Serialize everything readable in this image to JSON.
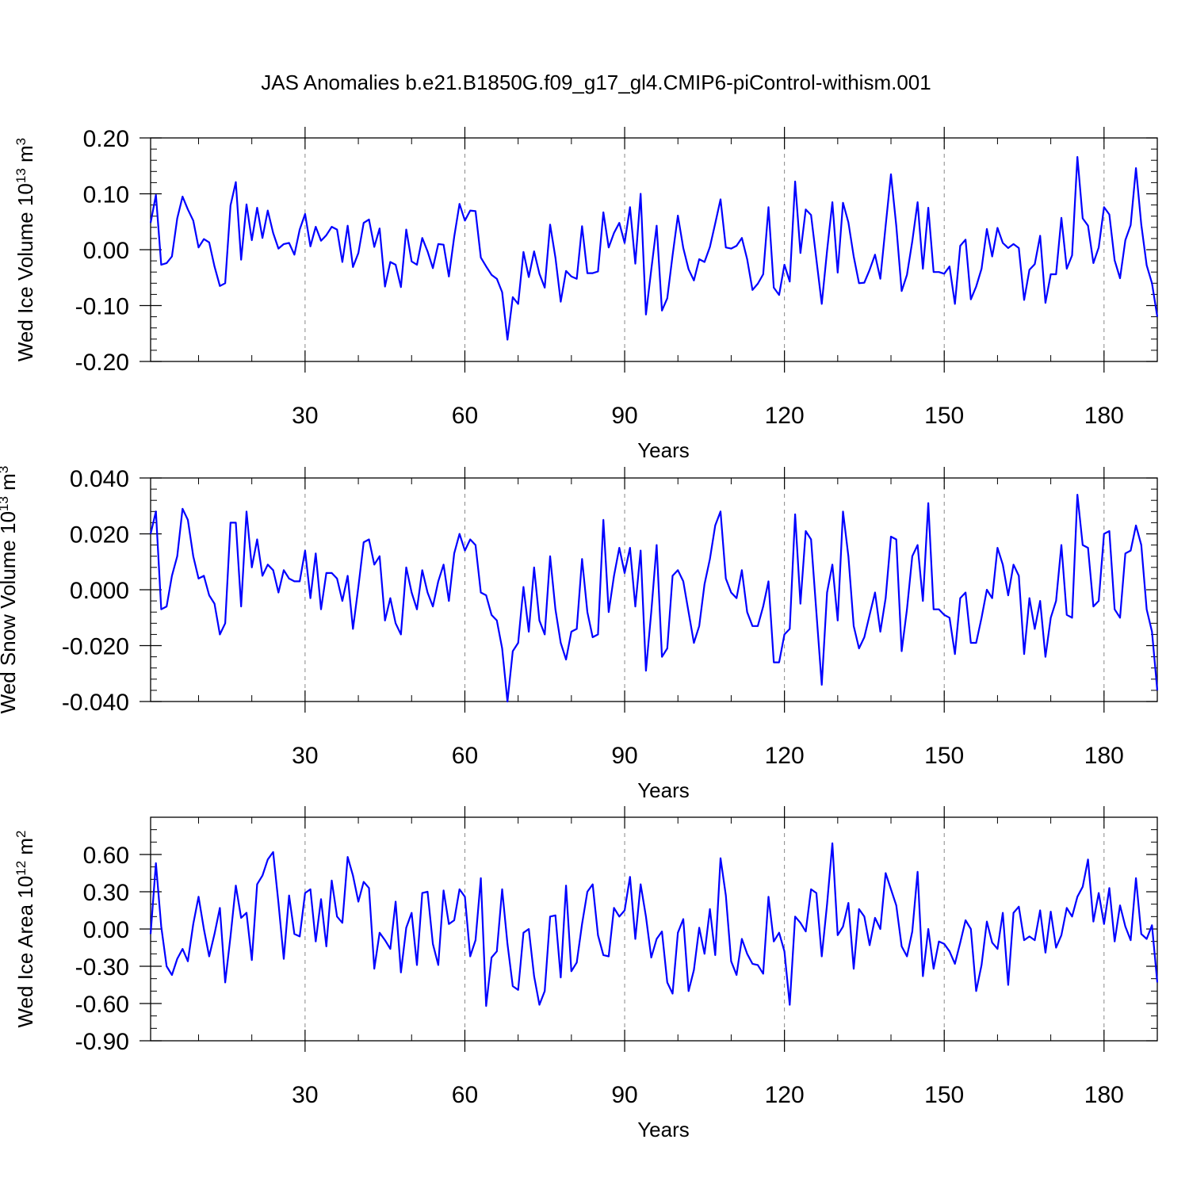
{
  "figure": {
    "title": "JAS Anomalies b.e21.B1850G.f09_g17_gl4.CMIP6-piControl-withism.001"
  },
  "chart_data": [
    {
      "type": "line",
      "title": "JAS Anomalies b.e21.B1850G.f09_g17_gl4.CMIP6-piControl-withism.001",
      "xlabel": "Years",
      "ylabel": "Wed Ice Volume 10",
      "ylabel_exponent": "13",
      "ylabel_unit": "m",
      "ylabel_unit_exponent": "3",
      "xlim": [
        1,
        190
      ],
      "ylim": [
        -0.2,
        0.2
      ],
      "xticks": [
        30,
        60,
        90,
        120,
        150,
        180
      ],
      "yticks": [
        -0.2,
        -0.1,
        0.0,
        0.1,
        0.2
      ],
      "ytick_labels": [
        "-0.20",
        "-0.10",
        "0.00",
        "0.10",
        "0.20"
      ],
      "ytick_minor_step": 0.02,
      "xtick_minor_step": 10,
      "grid": "vertical dashed at major x ticks",
      "line_color": "#0000ff",
      "series": [
        {
          "name": "Wed Ice Volume",
          "values": [
            0.048,
            0.098,
            -0.027,
            -0.024,
            -0.012,
            0.056,
            0.095,
            0.072,
            0.052,
            0.004,
            0.019,
            0.013,
            -0.03,
            -0.065,
            -0.06,
            0.079,
            0.121,
            -0.018,
            0.081,
            0.017,
            0.075,
            0.021,
            0.07,
            0.03,
            0.002,
            0.01,
            0.012,
            -0.009,
            0.036,
            0.064,
            0.006,
            0.041,
            0.016,
            0.026,
            0.041,
            0.036,
            -0.022,
            0.043,
            -0.031,
            -0.006,
            0.048,
            0.054,
            0.005,
            0.038,
            -0.066,
            -0.022,
            -0.027,
            -0.067,
            0.036,
            -0.021,
            -0.027,
            0.021,
            -0.003,
            -0.033,
            0.01,
            0.009,
            -0.048,
            0.023,
            0.082,
            0.052,
            0.07,
            0.069,
            -0.014,
            -0.03,
            -0.045,
            -0.052,
            -0.076,
            -0.161,
            -0.085,
            -0.097,
            -0.004,
            -0.049,
            -0.003,
            -0.043,
            -0.068,
            0.045,
            -0.014,
            -0.093,
            -0.038,
            -0.048,
            -0.052,
            0.042,
            -0.042,
            -0.042,
            -0.039,
            0.067,
            0.004,
            0.03,
            0.048,
            0.012,
            0.076,
            -0.025,
            0.1,
            -0.116,
            -0.036,
            0.043,
            -0.109,
            -0.087,
            -0.01,
            0.061,
            0.003,
            -0.035,
            -0.055,
            -0.017,
            -0.022,
            0.005,
            0.047,
            0.09,
            0.004,
            0.002,
            0.007,
            0.021,
            -0.017,
            -0.072,
            -0.061,
            -0.044,
            0.076,
            -0.068,
            -0.081,
            -0.027,
            -0.057,
            0.122,
            -0.006,
            0.072,
            0.062,
            -0.017,
            -0.097,
            -0.002,
            0.085,
            -0.041,
            0.084,
            0.049,
            -0.012,
            -0.06,
            -0.059,
            -0.036,
            -0.009,
            -0.052,
            0.043,
            0.135,
            0.043,
            -0.074,
            -0.045,
            0.015,
            0.085,
            -0.034,
            0.075,
            -0.04,
            -0.04,
            -0.043,
            -0.03,
            -0.097,
            0.007,
            0.018,
            -0.089,
            -0.066,
            -0.034,
            0.037,
            -0.012,
            0.039,
            0.012,
            0.003,
            0.01,
            0.003,
            -0.09,
            -0.036,
            -0.026,
            0.025,
            -0.095,
            -0.044,
            -0.044,
            0.057,
            -0.034,
            -0.01,
            0.166,
            0.056,
            0.043,
            -0.024,
            0.004,
            0.076,
            0.063,
            -0.019,
            -0.051,
            0.017,
            0.044,
            0.146,
            0.045,
            -0.028,
            -0.06,
            -0.12
          ]
        }
      ]
    },
    {
      "type": "line",
      "title": "",
      "xlabel": "Years",
      "ylabel": "Wed Snow Volume 10",
      "ylabel_exponent": "13",
      "ylabel_unit": "m",
      "ylabel_unit_exponent": "3",
      "xlim": [
        1,
        190
      ],
      "ylim": [
        -0.04,
        0.04
      ],
      "xticks": [
        30,
        60,
        90,
        120,
        150,
        180
      ],
      "yticks": [
        -0.04,
        -0.02,
        0.0,
        0.02,
        0.04
      ],
      "ytick_labels": [
        "-0.040",
        "-0.020",
        "0.000",
        "0.020",
        "0.040"
      ],
      "ytick_minor_step": 0.004,
      "xtick_minor_step": 10,
      "grid": "vertical dashed at major x ticks",
      "line_color": "#0000ff",
      "series": [
        {
          "name": "Wed Snow Volume",
          "values": [
            0.02,
            0.028,
            -0.007,
            -0.006,
            0.005,
            0.012,
            0.029,
            0.025,
            0.012,
            0.004,
            0.005,
            -0.002,
            -0.005,
            -0.016,
            -0.012,
            0.024,
            0.024,
            -0.006,
            0.028,
            0.008,
            0.018,
            0.005,
            0.009,
            0.007,
            -0.001,
            0.007,
            0.004,
            0.003,
            0.003,
            0.014,
            -0.003,
            0.013,
            -0.007,
            0.006,
            0.006,
            0.004,
            -0.004,
            0.005,
            -0.014,
            0.001,
            0.017,
            0.018,
            0.009,
            0.012,
            -0.011,
            -0.003,
            -0.012,
            -0.016,
            0.008,
            -0.001,
            -0.007,
            0.007,
            -0.001,
            -0.006,
            0.003,
            0.009,
            -0.004,
            0.013,
            0.02,
            0.014,
            0.018,
            0.016,
            -0.001,
            -0.002,
            -0.009,
            -0.011,
            -0.021,
            -0.04,
            -0.022,
            -0.019,
            0.001,
            -0.015,
            0.008,
            -0.011,
            -0.016,
            0.012,
            -0.007,
            -0.019,
            -0.025,
            -0.015,
            -0.014,
            0.011,
            -0.008,
            -0.017,
            -0.016,
            0.025,
            -0.008,
            0.005,
            0.015,
            0.006,
            0.015,
            -0.006,
            0.014,
            -0.029,
            -0.008,
            0.016,
            -0.024,
            -0.021,
            0.005,
            0.007,
            0.003,
            -0.008,
            -0.019,
            -0.013,
            0.002,
            0.011,
            0.023,
            0.028,
            0.004,
            -0.001,
            -0.003,
            0.007,
            -0.008,
            -0.013,
            -0.013,
            -0.006,
            0.003,
            -0.026,
            -0.026,
            -0.016,
            -0.014,
            0.027,
            -0.005,
            0.021,
            0.018,
            -0.008,
            -0.034,
            -0.001,
            0.009,
            -0.011,
            0.028,
            0.012,
            -0.013,
            -0.021,
            -0.017,
            -0.009,
            -0.001,
            -0.015,
            -0.003,
            0.019,
            0.018,
            -0.022,
            -0.007,
            0.012,
            0.016,
            -0.004,
            0.031,
            -0.007,
            -0.007,
            -0.009,
            -0.01,
            -0.023,
            -0.003,
            -0.001,
            -0.019,
            -0.019,
            -0.01,
            0.0,
            -0.003,
            0.015,
            0.009,
            -0.002,
            0.009,
            0.005,
            -0.023,
            -0.003,
            -0.014,
            -0.004,
            -0.024,
            -0.01,
            -0.004,
            0.016,
            -0.009,
            -0.01,
            0.034,
            0.016,
            0.015,
            -0.006,
            -0.004,
            0.02,
            0.021,
            -0.007,
            -0.01,
            0.013,
            0.014,
            0.023,
            0.016,
            -0.007,
            -0.015,
            -0.036
          ]
        }
      ]
    },
    {
      "type": "line",
      "title": "",
      "xlabel": "Years",
      "ylabel": "Wed Ice Area 10",
      "ylabel_exponent": "12",
      "ylabel_unit": "m",
      "ylabel_unit_exponent": "2",
      "xlim": [
        1,
        190
      ],
      "ylim": [
        -0.9,
        0.9
      ],
      "xticks": [
        30,
        60,
        90,
        120,
        150,
        180
      ],
      "yticks": [
        -0.9,
        -0.6,
        -0.3,
        0.0,
        0.3,
        0.6
      ],
      "ytick_labels": [
        "-0.90",
        "-0.60",
        "-0.30",
        "0.00",
        "0.30",
        "0.60"
      ],
      "ytick_minor_step": 0.1,
      "xtick_minor_step": 10,
      "grid": "vertical dashed at major x ticks",
      "line_color": "#0000ff",
      "series": [
        {
          "name": "Wed Ice Area",
          "values": [
            -0.04,
            0.53,
            0.02,
            -0.3,
            -0.37,
            -0.24,
            -0.16,
            -0.26,
            0.04,
            0.26,
            0.0,
            -0.22,
            -0.04,
            0.17,
            -0.43,
            -0.06,
            0.35,
            0.09,
            0.13,
            -0.25,
            0.36,
            0.43,
            0.56,
            0.62,
            0.21,
            -0.24,
            0.27,
            -0.04,
            -0.06,
            0.29,
            0.32,
            -0.1,
            0.24,
            -0.14,
            0.39,
            0.1,
            0.05,
            0.58,
            0.43,
            0.22,
            0.38,
            0.33,
            -0.32,
            -0.03,
            -0.09,
            -0.16,
            0.22,
            -0.35,
            0.01,
            0.13,
            -0.29,
            0.29,
            0.3,
            -0.12,
            -0.29,
            0.31,
            0.04,
            0.07,
            0.32,
            0.26,
            -0.22,
            -0.09,
            0.41,
            -0.62,
            -0.23,
            -0.18,
            0.32,
            -0.12,
            -0.46,
            -0.49,
            -0.03,
            0.0,
            -0.38,
            -0.61,
            -0.5,
            0.1,
            0.11,
            -0.39,
            0.35,
            -0.34,
            -0.27,
            0.04,
            0.3,
            0.36,
            -0.05,
            -0.21,
            -0.22,
            0.17,
            0.1,
            0.15,
            0.42,
            -0.08,
            0.36,
            0.1,
            -0.23,
            -0.08,
            -0.02,
            -0.43,
            -0.52,
            -0.03,
            0.08,
            -0.5,
            -0.33,
            0.01,
            -0.2,
            0.16,
            -0.21,
            0.57,
            0.27,
            -0.26,
            -0.37,
            -0.08,
            -0.2,
            -0.28,
            -0.29,
            -0.36,
            0.26,
            -0.1,
            -0.03,
            -0.18,
            -0.61,
            0.1,
            0.05,
            -0.02,
            0.32,
            0.29,
            -0.22,
            0.2,
            0.69,
            -0.05,
            0.02,
            0.21,
            -0.32,
            0.16,
            0.1,
            -0.13,
            0.09,
            0.0,
            0.45,
            0.32,
            0.19,
            -0.14,
            -0.22,
            -0.02,
            0.46,
            -0.38,
            0.0,
            -0.32,
            -0.1,
            -0.12,
            -0.18,
            -0.28,
            -0.11,
            0.07,
            0.0,
            -0.5,
            -0.29,
            0.06,
            -0.11,
            -0.16,
            0.13,
            -0.45,
            0.13,
            0.18,
            -0.09,
            -0.06,
            -0.09,
            0.15,
            -0.19,
            0.14,
            -0.15,
            -0.05,
            0.17,
            0.1,
            0.26,
            0.34,
            0.56,
            0.06,
            0.29,
            0.04,
            0.33,
            -0.1,
            0.19,
            0.02,
            -0.09,
            0.41,
            -0.04,
            -0.08,
            0.03,
            -0.43
          ]
        }
      ]
    }
  ]
}
